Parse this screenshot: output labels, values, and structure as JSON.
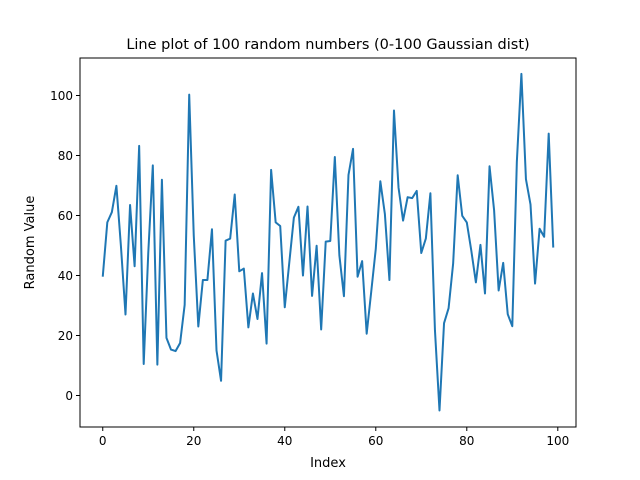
{
  "chart_data": {
    "type": "line",
    "title": "Line plot of 100 random numbers (0-100 Gaussian dist)",
    "xlabel": "Index",
    "ylabel": "Random Value",
    "xlim": [
      -5,
      104
    ],
    "ylim": [
      -10.5,
      112.5
    ],
    "xticks": [
      0,
      20,
      40,
      60,
      80,
      100
    ],
    "yticks": [
      0,
      20,
      40,
      60,
      80,
      100
    ],
    "grid": false,
    "series_color": "#1f77b4",
    "series": [
      {
        "values": [
          39.6,
          57.7,
          61.1,
          69.9,
          49.7,
          27.0,
          63.5,
          43.1,
          83.2,
          10.5,
          47.5,
          76.7,
          10.3,
          71.9,
          19.2,
          15.3,
          14.8,
          17.5,
          30.2,
          100.3,
          53.3,
          23.0,
          38.5,
          38.5,
          55.4,
          15.0,
          4.9,
          51.6,
          52.3,
          67.0,
          41.4,
          42.3,
          22.7,
          34.0,
          25.5,
          40.8,
          17.3,
          75.2,
          57.7,
          56.5,
          29.4,
          44.4,
          59.3,
          62.9,
          40.0,
          63.0,
          33.2,
          49.9,
          22.0,
          51.3,
          51.5,
          79.5,
          46.7,
          33.1,
          73.5,
          82.2,
          39.6,
          44.8,
          20.6,
          34.6,
          48.9,
          71.4,
          60.5,
          38.5,
          95.0,
          69.3,
          58.3,
          66.1,
          65.8,
          68.2,
          47.5,
          52.3,
          67.4,
          21.8,
          -5.0,
          24.1,
          29.1,
          44.0,
          73.4,
          59.9,
          57.7,
          48.2,
          37.7,
          50.2,
          34.0,
          76.4,
          61.8,
          35.0,
          44.2,
          27.1,
          23.1,
          77.9,
          107.2,
          72.1,
          63.7,
          37.3,
          55.6,
          52.9,
          87.3,
          49.3
        ]
      }
    ]
  }
}
